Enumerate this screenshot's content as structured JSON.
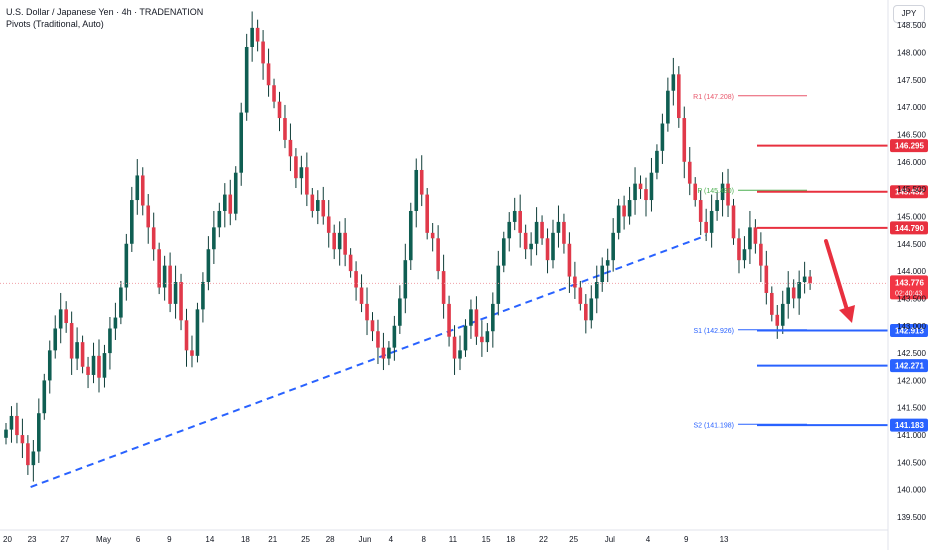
{
  "header": {
    "title": "U.S. Dollar / Japanese Yen · 4h · TRADENATION",
    "subtitle": "Pivots (Traditional, Auto)"
  },
  "currency_badge": "JPY",
  "colors": {
    "up_candle": "#0f5e52",
    "down_candle": "#e0394a",
    "wick": "#0f3d38",
    "trendline": "#2962ff",
    "resistance": "#e8303f",
    "support": "#2962ff",
    "pivot_r1": "#e8566a",
    "pivot_p": "#4caf50",
    "pivot_s": "#2962ff",
    "arrow": "#e8303f",
    "current_price_line": "#f0a0a8",
    "current_price_tag": "#f23645"
  },
  "chart_data": {
    "type": "candlestick",
    "symbol": "USDJPY",
    "timeframe": "4h",
    "y_axis": {
      "ylim": [
        139.3,
        148.85
      ],
      "ticks": [
        139.5,
        140.0,
        140.5,
        141.0,
        141.5,
        142.0,
        142.5,
        143.0,
        143.5,
        144.0,
        144.5,
        145.0,
        145.5,
        146.0,
        146.5,
        147.0,
        147.5,
        148.0,
        148.5
      ],
      "tick_labels": [
        "139.500",
        "140.000",
        "140.500",
        "141.000",
        "141.500",
        "142.000",
        "142.500",
        "143.000",
        "143.500",
        "144.000",
        "144.500",
        "145.000",
        "145.500",
        "146.000",
        "146.500",
        "147.000",
        "147.500",
        "148.000",
        "148.500"
      ]
    },
    "x_axis": {
      "labels": [
        "20",
        "23",
        "27",
        "May",
        "6",
        "9",
        "14",
        "18",
        "21",
        "25",
        "28",
        "Jun",
        "4",
        "8",
        "11",
        "15",
        "18",
        "22",
        "25",
        "Jul",
        "4",
        "9",
        "13"
      ],
      "label_index": [
        0,
        4.5,
        10.5,
        17,
        24.3,
        30,
        37,
        43.5,
        48.5,
        54.5,
        59,
        65,
        70.5,
        76.5,
        81.5,
        87.5,
        92,
        98,
        103.5,
        110,
        117.5,
        124.5,
        131
      ]
    },
    "candles_close": [
      141.1,
      141.35,
      141.0,
      140.85,
      140.45,
      140.7,
      141.4,
      142.0,
      142.55,
      142.95,
      143.3,
      143.05,
      142.4,
      142.7,
      142.25,
      142.1,
      142.45,
      142.05,
      142.5,
      142.95,
      143.15,
      143.7,
      144.5,
      145.3,
      145.75,
      145.2,
      144.8,
      144.4,
      143.7,
      144.1,
      143.4,
      143.8,
      143.1,
      142.55,
      142.45,
      143.3,
      143.8,
      144.4,
      144.8,
      145.1,
      145.4,
      145.05,
      145.8,
      146.9,
      148.1,
      148.45,
      148.2,
      147.8,
      147.4,
      147.1,
      146.8,
      146.4,
      146.1,
      145.7,
      145.9,
      145.4,
      145.1,
      145.3,
      145.0,
      144.7,
      144.4,
      144.7,
      144.3,
      144.0,
      143.7,
      143.4,
      143.1,
      142.9,
      142.6,
      142.4,
      142.6,
      143.0,
      143.5,
      144.2,
      145.1,
      145.85,
      145.4,
      144.7,
      144.6,
      144.0,
      143.4,
      142.8,
      142.4,
      142.55,
      143.0,
      143.3,
      142.8,
      142.7,
      142.9,
      143.4,
      144.1,
      144.6,
      144.9,
      145.1,
      144.7,
      144.4,
      144.5,
      144.9,
      144.6,
      144.2,
      144.7,
      144.9,
      144.5,
      143.9,
      143.7,
      143.4,
      143.1,
      143.5,
      143.8,
      144.1,
      144.2,
      144.7,
      145.2,
      145.0,
      145.3,
      145.6,
      145.5,
      145.3,
      145.8,
      146.2,
      146.7,
      147.3,
      147.6,
      146.8,
      146.0,
      145.6,
      145.3,
      144.9,
      144.7,
      145.1,
      145.3,
      145.6,
      145.2,
      144.6,
      144.2,
      144.4,
      144.8,
      144.5,
      144.1,
      143.6,
      143.2,
      143.0,
      143.4,
      143.7,
      143.5,
      143.8,
      143.9,
      143.776
    ],
    "current_price": "143.776",
    "countdown": "02:40:43",
    "trendline": {
      "from": {
        "x_index": 4.5,
        "price": 140.05
      },
      "to": {
        "x_index": 128,
        "price": 144.65
      },
      "style": "dashed"
    },
    "pivots": [
      {
        "label": "R1 (147.208)",
        "price": 147.208,
        "color_key": "pivot_r1"
      },
      {
        "label": "P (145.480)",
        "price": 145.48,
        "color_key": "pivot_p"
      },
      {
        "label": "S1 (142.926)",
        "price": 142.926,
        "color_key": "pivot_s"
      },
      {
        "label": "S2 (141.198)",
        "price": 141.198,
        "color_key": "pivot_s"
      }
    ],
    "level_tags": [
      {
        "price": 146.295,
        "label": "146.295",
        "kind": "resistance"
      },
      {
        "price": 145.452,
        "label": "145.452",
        "kind": "resistance"
      },
      {
        "price": 144.79,
        "label": "144.790",
        "kind": "resistance"
      },
      {
        "price": 142.913,
        "label": "142.913",
        "kind": "support"
      },
      {
        "price": 142.271,
        "label": "142.271",
        "kind": "support"
      },
      {
        "price": 141.183,
        "label": "141.183",
        "kind": "support"
      }
    ],
    "arrow": {
      "direction": "down",
      "from_price": 144.55,
      "to_price": 143.05
    }
  }
}
